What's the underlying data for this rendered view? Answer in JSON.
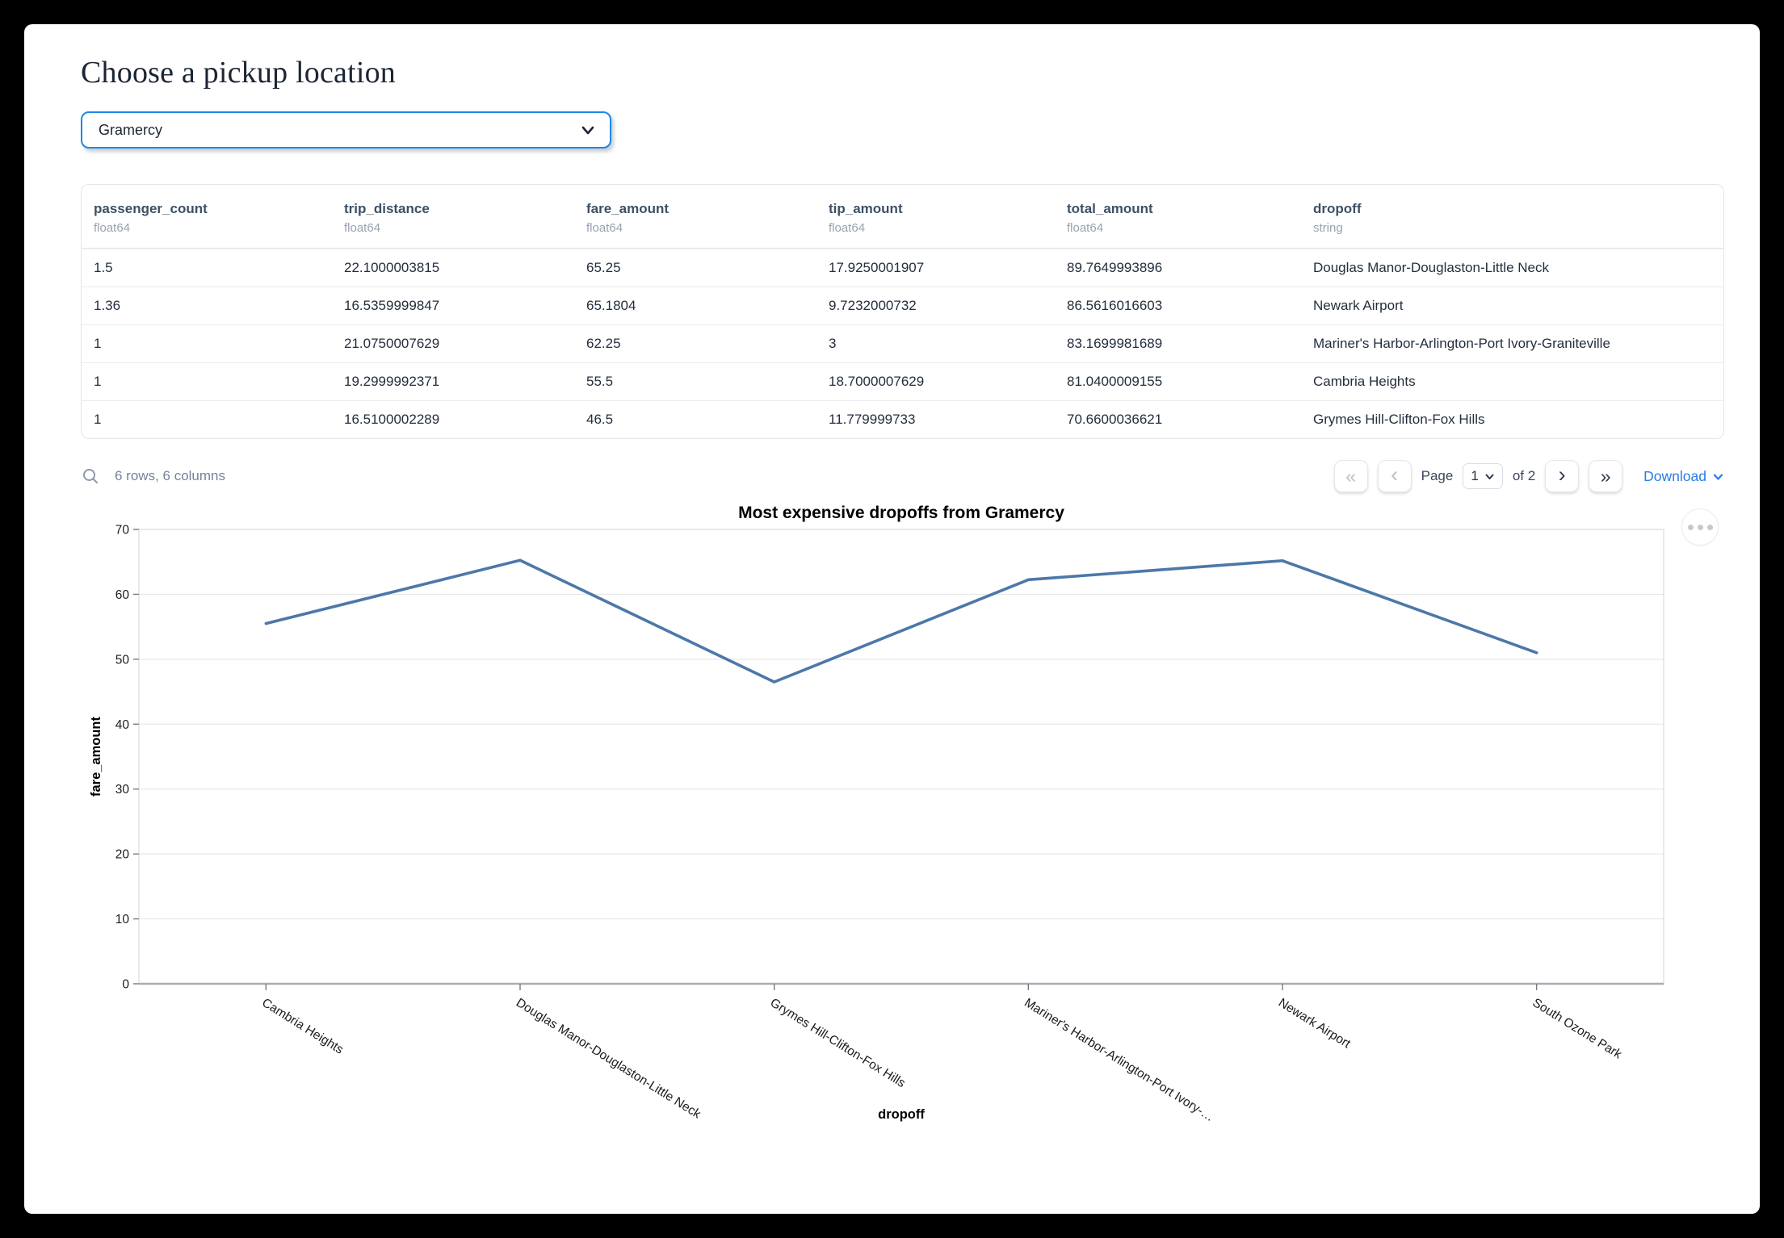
{
  "page": {
    "title": "Choose a pickup location"
  },
  "pickup_select": {
    "value": "Gramercy"
  },
  "table": {
    "columns": [
      {
        "name": "passenger_count",
        "type": "float64"
      },
      {
        "name": "trip_distance",
        "type": "float64"
      },
      {
        "name": "fare_amount",
        "type": "float64"
      },
      {
        "name": "tip_amount",
        "type": "float64"
      },
      {
        "name": "total_amount",
        "type": "float64"
      },
      {
        "name": "dropoff",
        "type": "string"
      }
    ],
    "rows": [
      [
        "1.5",
        "22.1000003815",
        "65.25",
        "17.9250001907",
        "89.7649993896",
        "Douglas Manor-Douglaston-Little Neck"
      ],
      [
        "1.36",
        "16.5359999847",
        "65.1804",
        "9.7232000732",
        "86.5616016603",
        "Newark Airport"
      ],
      [
        "1",
        "21.0750007629",
        "62.25",
        "3",
        "83.1699981689",
        "Mariner's Harbor-Arlington-Port Ivory-Graniteville"
      ],
      [
        "1",
        "19.2999992371",
        "55.5",
        "18.7000007629",
        "81.0400009155",
        "Cambria Heights"
      ],
      [
        "1",
        "16.5100002289",
        "46.5",
        "11.779999733",
        "70.6600036621",
        "Grymes Hill-Clifton-Fox Hills"
      ]
    ],
    "summary": "6 rows, 6 columns",
    "pagination": {
      "first_glyph": "«",
      "prev_glyph": "‹",
      "next_glyph": "›",
      "last_glyph": "»",
      "page_label": "Page",
      "current_page": "1",
      "of_label": "of 2"
    },
    "download_label": "Download"
  },
  "chart_data": {
    "type": "line",
    "title": "Most expensive dropoffs from Gramercy",
    "categories": [
      "Cambria Heights",
      "Douglas Manor-Douglaston-Little Neck",
      "Grymes Hill-Clifton-Fox Hills",
      "Mariner's Harbor-Arlington-Port Ivory-Graniteville",
      "Newark Airport",
      "South Ozone Park"
    ],
    "tick_labels": [
      "Cambria Heights",
      "Douglas Manor-Douglaston-Little Neck",
      "Grymes Hill-Clifton-Fox Hills",
      "Mariner's Harbor-Arlington-Port Ivory-…",
      "Newark Airport",
      "South Ozone Park"
    ],
    "values": [
      55.5,
      65.25,
      46.5,
      62.25,
      65.18,
      51
    ],
    "xlabel": "dropoff",
    "ylabel": "fare_amount",
    "ylim": [
      0,
      70
    ],
    "yticks": [
      0,
      10,
      20,
      30,
      40,
      50,
      60,
      70
    ],
    "line_color": "#4c78a8",
    "grid": true,
    "legend": "none"
  },
  "colors": {
    "accent_blue": "#1f87e9",
    "link_blue": "#2a7be8",
    "header_text": "#3d5066",
    "line": "#4c78a8"
  }
}
